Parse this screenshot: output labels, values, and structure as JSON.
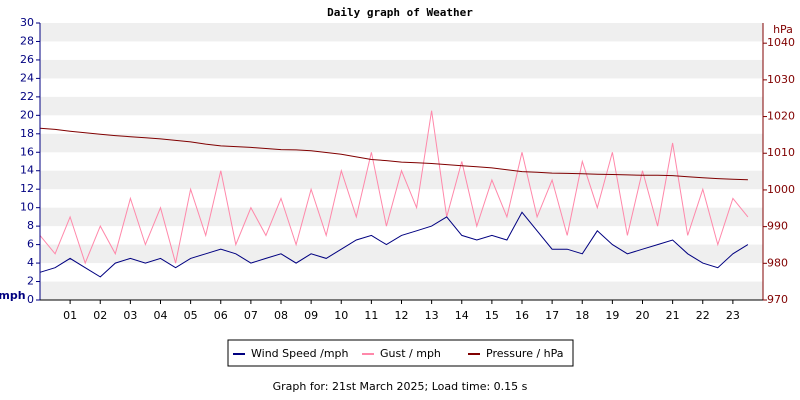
{
  "chart_data": {
    "type": "line",
    "title": "Daily graph of Weather",
    "y_label": "mph",
    "y2_label": "hPa",
    "footer": "Graph for: 21st March 2025; Load time: 0.15 s",
    "x": [
      0,
      0.5,
      1,
      1.5,
      2,
      2.5,
      3,
      3.5,
      4,
      4.5,
      5,
      5.5,
      6,
      6.5,
      7,
      7.5,
      8,
      8.5,
      9,
      9.5,
      10,
      10.5,
      11,
      11.5,
      12,
      12.5,
      13,
      13.5,
      14,
      14.5,
      15,
      15.5,
      16,
      16.5,
      17,
      17.5,
      18,
      18.5,
      19,
      19.5,
      20,
      20.5,
      21,
      21.5,
      22,
      22.5,
      23,
      23.5
    ],
    "xlim": [
      0,
      24
    ],
    "xticks": [
      {
        "value": 1,
        "label": "01"
      },
      {
        "value": 2,
        "label": "02"
      },
      {
        "value": 3,
        "label": "03"
      },
      {
        "value": 4,
        "label": "04"
      },
      {
        "value": 5,
        "label": "05"
      },
      {
        "value": 6,
        "label": "06"
      },
      {
        "value": 7,
        "label": "07"
      },
      {
        "value": 8,
        "label": "08"
      },
      {
        "value": 9,
        "label": "09"
      },
      {
        "value": 10,
        "label": "10"
      },
      {
        "value": 11,
        "label": "11"
      },
      {
        "value": 12,
        "label": "12"
      },
      {
        "value": 13,
        "label": "13"
      },
      {
        "value": 14,
        "label": "14"
      },
      {
        "value": 15,
        "label": "15"
      },
      {
        "value": 16,
        "label": "16"
      },
      {
        "value": 17,
        "label": "17"
      },
      {
        "value": 18,
        "label": "18"
      },
      {
        "value": 19,
        "label": "19"
      },
      {
        "value": 20,
        "label": "20"
      },
      {
        "value": 21,
        "label": "21"
      },
      {
        "value": 22,
        "label": "22"
      },
      {
        "value": 23,
        "label": "23"
      }
    ],
    "ylim": [
      0,
      30
    ],
    "yticks": [
      0,
      2,
      4,
      6,
      8,
      10,
      12,
      14,
      16,
      18,
      20,
      22,
      24,
      26,
      28,
      30
    ],
    "y2lim": [
      970,
      1045.5
    ],
    "y2ticks": [
      970,
      980,
      990,
      1000,
      1010,
      1020,
      1030,
      1040
    ],
    "grid": "bands",
    "series": [
      {
        "name": "Wind Speed /mph",
        "color": "#000080",
        "axis": "y",
        "values": [
          3,
          3.5,
          4.5,
          3.5,
          2.5,
          4,
          4.5,
          4,
          4.5,
          3.5,
          4.5,
          5,
          5.5,
          5,
          4,
          4.5,
          5,
          4,
          5,
          4.5,
          5.5,
          6.5,
          7,
          6,
          7,
          7.5,
          8,
          9,
          7,
          6.5,
          7,
          6.5,
          9.5,
          7.5,
          5.5,
          5.5,
          5,
          7.5,
          6,
          5,
          5.5,
          6,
          6.5,
          5,
          4,
          3.5,
          5,
          6
        ]
      },
      {
        "name": "Gust / mph",
        "color": "#ff88aa",
        "axis": "y",
        "values": [
          7,
          5,
          9,
          4,
          8,
          5,
          11,
          6,
          10,
          4,
          12,
          7,
          14,
          6,
          10,
          7,
          11,
          6,
          12,
          7,
          14,
          9,
          16,
          8,
          14,
          10,
          20.5,
          9,
          15,
          8,
          13,
          9,
          16,
          9,
          13,
          7,
          15,
          10,
          16,
          7,
          14,
          8,
          17,
          7,
          12,
          6,
          11,
          9
        ]
      },
      {
        "name": "Pressure / hPa",
        "color": "#800000",
        "axis": "y2",
        "values": [
          1016.8,
          1016.5,
          1016,
          1015.6,
          1015.2,
          1014.8,
          1014.5,
          1014.2,
          1013.9,
          1013.5,
          1013.1,
          1012.5,
          1012,
          1011.8,
          1011.6,
          1011.3,
          1011,
          1010.9,
          1010.7,
          1010.2,
          1009.7,
          1009,
          1008.3,
          1008,
          1007.6,
          1007.4,
          1007.2,
          1006.9,
          1006.6,
          1006.3,
          1006,
          1005.5,
          1005,
          1004.8,
          1004.6,
          1004.5,
          1004.4,
          1004.3,
          1004.2,
          1004.1,
          1004,
          1004,
          1003.9,
          1003.6,
          1003.3,
          1003.1,
          1002.9,
          1002.8
        ]
      }
    ]
  }
}
